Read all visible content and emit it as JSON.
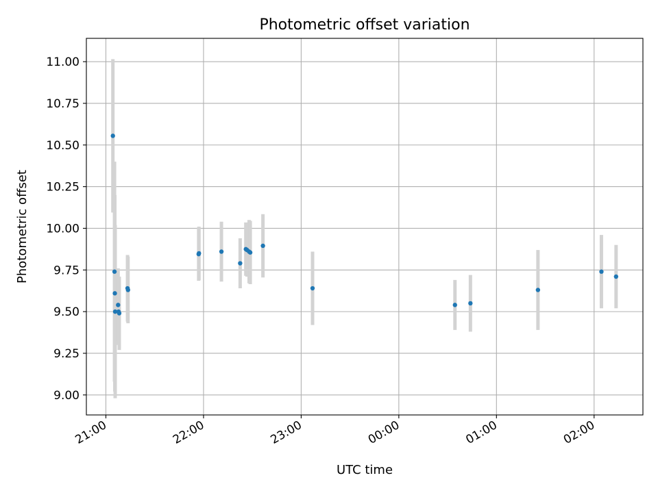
{
  "chart_data": {
    "type": "scatter",
    "title": "Photometric offset variation",
    "xlabel": "UTC time",
    "ylabel": "Photometric offset",
    "x_unit": "minutes after 21:00 UTC",
    "xlim": [
      -12,
      330
    ],
    "ylim": [
      8.88,
      11.14
    ],
    "x_ticks": [
      {
        "label": "21:00",
        "value": 0
      },
      {
        "label": "22:00",
        "value": 60
      },
      {
        "label": "23:00",
        "value": 120
      },
      {
        "label": "00:00",
        "value": 180
      },
      {
        "label": "01:00",
        "value": 240
      },
      {
        "label": "02:00",
        "value": 300
      }
    ],
    "y_ticks": [
      9.0,
      9.25,
      9.5,
      9.75,
      10.0,
      10.25,
      10.5,
      10.75,
      11.0
    ],
    "grid": true,
    "colors": {
      "point": "#1f77b4",
      "errorbar": "#d3d3d3",
      "grid": "#b0b0b0"
    },
    "points": [
      {
        "x": 4.3,
        "y": 10.555,
        "err": 0.46
      },
      {
        "x": 5.3,
        "y": 9.74,
        "err": 0.66
      },
      {
        "x": 5.5,
        "y": 9.61,
        "err": 0.59
      },
      {
        "x": 5.7,
        "y": 9.5,
        "err": 0.52
      },
      {
        "x": 7.5,
        "y": 9.54,
        "err": 0.22
      },
      {
        "x": 7.8,
        "y": 9.5,
        "err": 0.2
      },
      {
        "x": 8.2,
        "y": 9.49,
        "err": 0.22
      },
      {
        "x": 13.3,
        "y": 9.64,
        "err": 0.2
      },
      {
        "x": 13.6,
        "y": 9.63,
        "err": 0.2
      },
      {
        "x": 57.0,
        "y": 9.845,
        "err": 0.16
      },
      {
        "x": 57.2,
        "y": 9.85,
        "err": 0.16
      },
      {
        "x": 71.0,
        "y": 9.86,
        "err": 0.18
      },
      {
        "x": 82.5,
        "y": 9.79,
        "err": 0.15
      },
      {
        "x": 86.0,
        "y": 9.875,
        "err": 0.16
      },
      {
        "x": 86.7,
        "y": 9.87,
        "err": 0.16
      },
      {
        "x": 88.0,
        "y": 9.86,
        "err": 0.19
      },
      {
        "x": 88.7,
        "y": 9.855,
        "err": 0.19
      },
      {
        "x": 96.5,
        "y": 9.895,
        "err": 0.19
      },
      {
        "x": 127.0,
        "y": 9.64,
        "err": 0.22
      },
      {
        "x": 214.5,
        "y": 9.54,
        "err": 0.15
      },
      {
        "x": 224.0,
        "y": 9.55,
        "err": 0.17
      },
      {
        "x": 265.5,
        "y": 9.63,
        "err": 0.24
      },
      {
        "x": 304.5,
        "y": 9.74,
        "err": 0.22
      },
      {
        "x": 313.5,
        "y": 9.71,
        "err": 0.19
      }
    ]
  }
}
